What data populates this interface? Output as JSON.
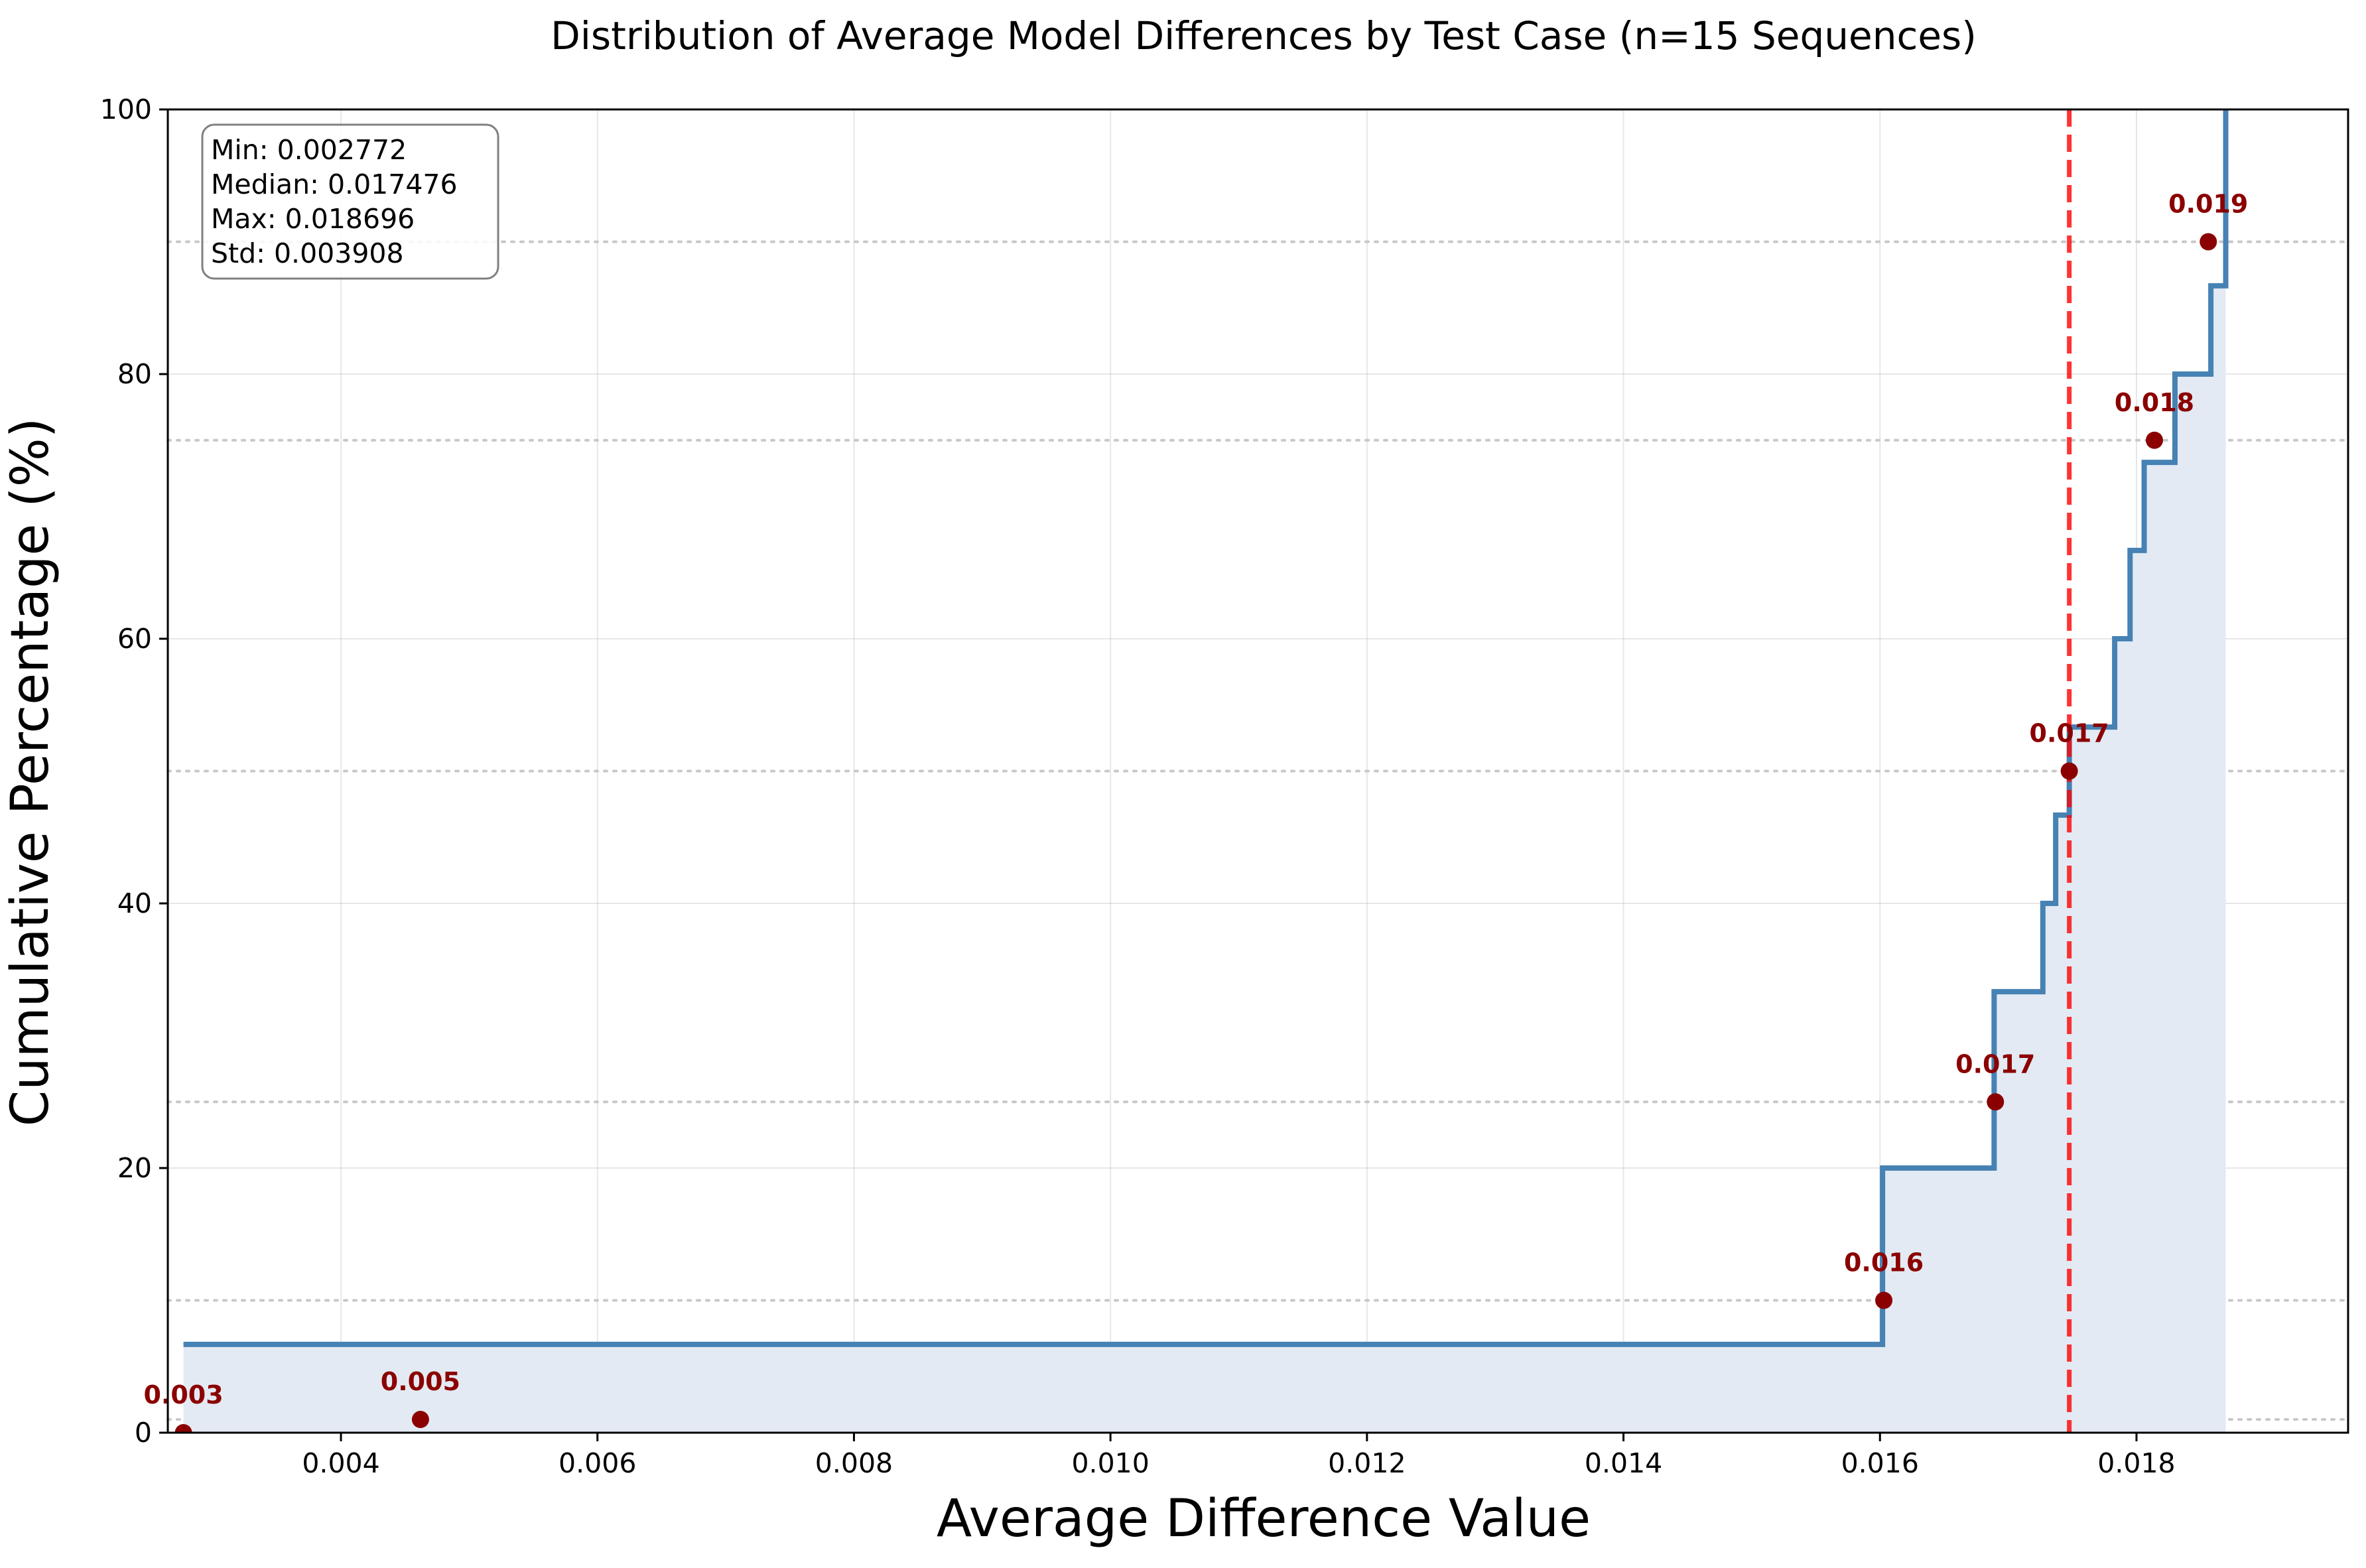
{
  "chart_data": {
    "type": "line",
    "title": "Distribution of Average Model Differences by Test Case (n=15 Sequences)",
    "xlabel": "Average Difference Value",
    "ylabel": "Cumulative Percentage (%)",
    "xlim": [
      0.00265,
      0.01965
    ],
    "ylim": [
      0,
      100
    ],
    "x_ticks": [
      0.004,
      0.006,
      0.008,
      0.01,
      0.012,
      0.014,
      0.016,
      0.018
    ],
    "x_tick_labels": [
      "0.004",
      "0.006",
      "0.008",
      "0.010",
      "0.012",
      "0.014",
      "0.016",
      "0.018"
    ],
    "y_ticks": [
      0,
      20,
      40,
      60,
      80,
      100
    ],
    "y_tick_labels": [
      "0",
      "20",
      "40",
      "60",
      "80",
      "100"
    ],
    "grid": true,
    "series": [
      {
        "style": "step-ecdf",
        "color": "#4682b4",
        "fill": "#e3eaf3",
        "x": [
          0.002772,
          0.01602,
          0.01689,
          0.01727,
          0.01737,
          0.017476,
          0.01783,
          0.01795,
          0.01806,
          0.0183,
          0.01858,
          0.018696
        ],
        "y": [
          6.67,
          20.0,
          33.33,
          40.0,
          46.67,
          53.33,
          60.0,
          66.67,
          73.33,
          80.0,
          86.67,
          100.0
        ]
      }
    ],
    "median_line": {
      "x": 0.017476,
      "color": "#ff0000"
    },
    "percentile_lines": [
      1,
      10,
      25,
      50,
      75,
      90
    ],
    "percentile_markers": [
      {
        "x": 0.002772,
        "y": 0,
        "label": "0.003"
      },
      {
        "x": 0.00462,
        "y": 1,
        "label": "0.005"
      },
      {
        "x": 0.01603,
        "y": 10,
        "label": "0.016"
      },
      {
        "x": 0.0169,
        "y": 25,
        "label": "0.017"
      },
      {
        "x": 0.017476,
        "y": 50,
        "label": "0.017"
      },
      {
        "x": 0.01814,
        "y": 75,
        "label": "0.018"
      },
      {
        "x": 0.01856,
        "y": 90,
        "label": "0.019"
      }
    ],
    "marker_color": "#8b0000",
    "stats_box": {
      "position": "top-left",
      "lines": [
        "Min: 0.002772",
        "Median: 0.017476",
        "Max: 0.018696",
        "Std: 0.003908"
      ]
    }
  }
}
